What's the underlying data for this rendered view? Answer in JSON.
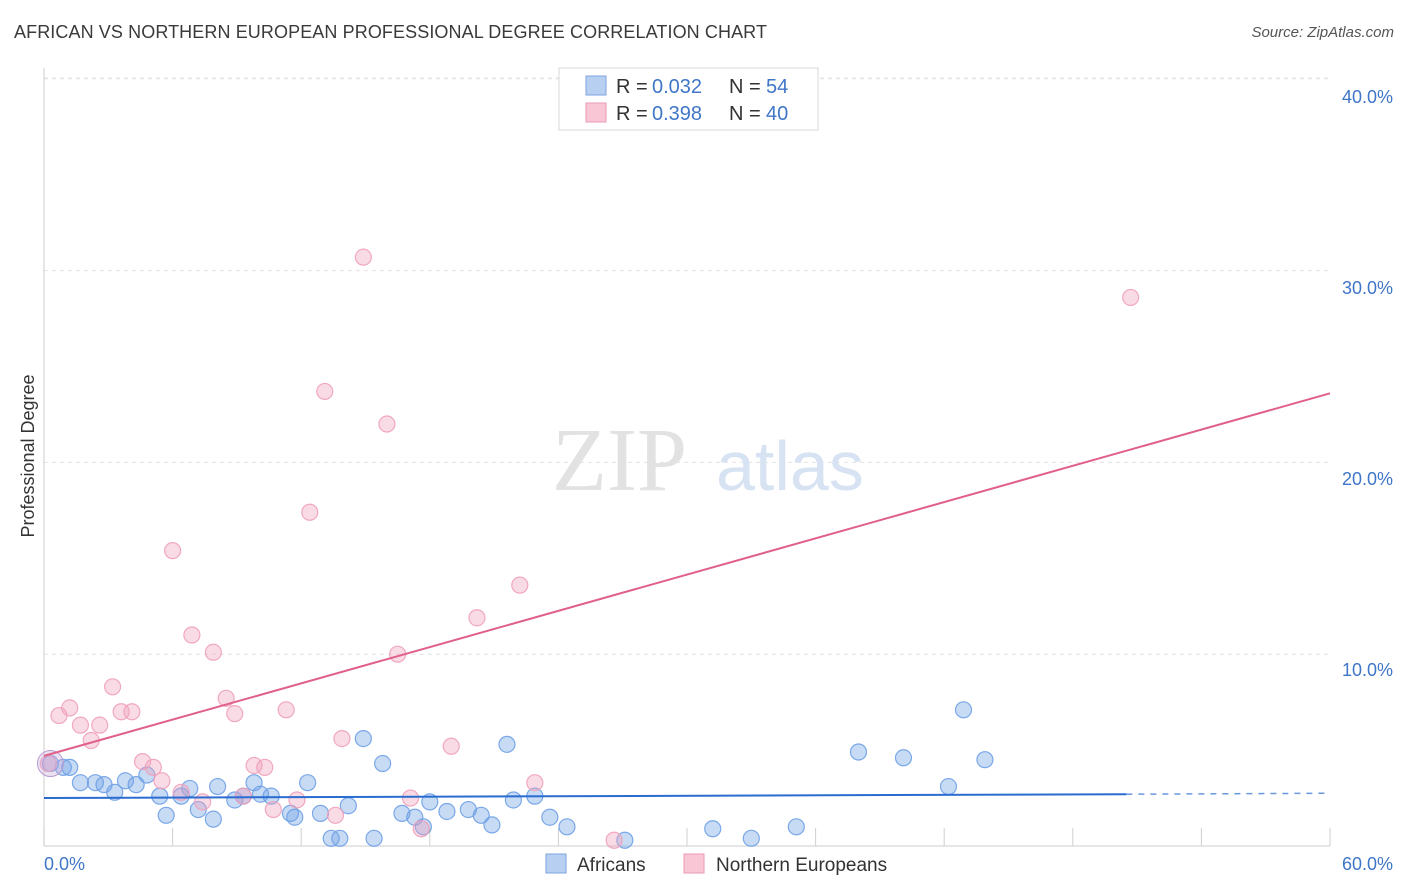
{
  "header": {
    "title": "AFRICAN VS NORTHERN EUROPEAN PROFESSIONAL DEGREE CORRELATION CHART",
    "source": "Source: ZipAtlas.com"
  },
  "watermark": {
    "zip": "ZIP",
    "atlas": "atlas"
  },
  "legend": {
    "r_label": "R =",
    "n_label": "N =",
    "entries": [
      {
        "r": "0.032",
        "n": "54"
      },
      {
        "r": "0.398",
        "n": "40"
      }
    ]
  },
  "chart_data": {
    "type": "scatter",
    "title": "AFRICAN VS NORTHERN EUROPEAN PROFESSIONAL DEGREE CORRELATION CHART",
    "xlabel": "",
    "ylabel": "Professional Degree",
    "xlim": [
      0,
      60
    ],
    "ylim": [
      0,
      41.5
    ],
    "x_tick_labels": [
      "0.0%",
      "60.0%"
    ],
    "y_ticks": [
      10,
      20,
      30,
      40
    ],
    "y_tick_labels": [
      "10.0%",
      "20.0%",
      "30.0%",
      "40.0%"
    ],
    "grid": true,
    "series": [
      {
        "name": "Africans",
        "color": "#6ea0e6",
        "line_color": "#2a6ccf",
        "r": 0.032,
        "n": 54,
        "trend": {
          "x0": 0,
          "y0": 2.5,
          "x1": 50.5,
          "y1": 2.7,
          "dash_to": 60,
          "dash_y": 2.75
        },
        "points": [
          {
            "x": 0.3,
            "y": 4.3
          },
          {
            "x": 1.2,
            "y": 4.1
          },
          {
            "x": 1.7,
            "y": 3.3
          },
          {
            "x": 2.4,
            "y": 3.3
          },
          {
            "x": 2.8,
            "y": 3.2
          },
          {
            "x": 3.3,
            "y": 2.8
          },
          {
            "x": 3.8,
            "y": 3.4
          },
          {
            "x": 4.3,
            "y": 3.2
          },
          {
            "x": 4.8,
            "y": 3.7
          },
          {
            "x": 5.4,
            "y": 2.6
          },
          {
            "x": 5.7,
            "y": 1.6
          },
          {
            "x": 6.4,
            "y": 2.6
          },
          {
            "x": 6.8,
            "y": 3.0
          },
          {
            "x": 7.2,
            "y": 1.9
          },
          {
            "x": 7.9,
            "y": 1.4
          },
          {
            "x": 8.1,
            "y": 3.1
          },
          {
            "x": 8.9,
            "y": 2.4
          },
          {
            "x": 9.3,
            "y": 2.6
          },
          {
            "x": 9.8,
            "y": 3.3
          },
          {
            "x": 10.1,
            "y": 2.7
          },
          {
            "x": 10.6,
            "y": 2.6
          },
          {
            "x": 11.5,
            "y": 1.7
          },
          {
            "x": 11.7,
            "y": 1.5
          },
          {
            "x": 12.3,
            "y": 3.3
          },
          {
            "x": 12.9,
            "y": 1.7
          },
          {
            "x": 13.4,
            "y": 0.4
          },
          {
            "x": 13.8,
            "y": 0.4
          },
          {
            "x": 14.2,
            "y": 2.1
          },
          {
            "x": 14.9,
            "y": 5.6
          },
          {
            "x": 15.4,
            "y": 0.4
          },
          {
            "x": 15.8,
            "y": 4.3
          },
          {
            "x": 16.7,
            "y": 1.7
          },
          {
            "x": 17.3,
            "y": 1.5
          },
          {
            "x": 17.7,
            "y": 1.0
          },
          {
            "x": 18.0,
            "y": 2.3
          },
          {
            "x": 18.8,
            "y": 1.8
          },
          {
            "x": 19.8,
            "y": 1.9
          },
          {
            "x": 20.4,
            "y": 1.6
          },
          {
            "x": 20.9,
            "y": 1.1
          },
          {
            "x": 21.6,
            "y": 5.3
          },
          {
            "x": 21.9,
            "y": 2.4
          },
          {
            "x": 22.9,
            "y": 2.6
          },
          {
            "x": 23.6,
            "y": 1.5
          },
          {
            "x": 24.4,
            "y": 1.0
          },
          {
            "x": 27.1,
            "y": 0.3
          },
          {
            "x": 31.2,
            "y": 0.9
          },
          {
            "x": 33.0,
            "y": 0.4
          },
          {
            "x": 35.1,
            "y": 1.0
          },
          {
            "x": 38.0,
            "y": 4.9
          },
          {
            "x": 40.1,
            "y": 4.6
          },
          {
            "x": 42.2,
            "y": 3.1
          },
          {
            "x": 42.9,
            "y": 7.1
          },
          {
            "x": 43.9,
            "y": 4.5
          },
          {
            "x": 0.9,
            "y": 4.1
          }
        ]
      },
      {
        "name": "Northern Europeans",
        "color": "#f0a0ba",
        "line_color": "#e0608a",
        "r": 0.398,
        "n": 40,
        "trend": {
          "x0": 0,
          "y0": 4.7,
          "x1": 60,
          "y1": 23.6
        },
        "points": [
          {
            "x": 0.2,
            "y": 4.3
          },
          {
            "x": 0.7,
            "y": 6.8
          },
          {
            "x": 1.2,
            "y": 7.2
          },
          {
            "x": 1.7,
            "y": 6.3
          },
          {
            "x": 2.2,
            "y": 5.5
          },
          {
            "x": 2.6,
            "y": 6.3
          },
          {
            "x": 3.2,
            "y": 8.3
          },
          {
            "x": 3.6,
            "y": 7.0
          },
          {
            "x": 4.1,
            "y": 7.0
          },
          {
            "x": 4.6,
            "y": 4.4
          },
          {
            "x": 5.1,
            "y": 4.1
          },
          {
            "x": 5.5,
            "y": 3.4
          },
          {
            "x": 6.0,
            "y": 15.4
          },
          {
            "x": 6.4,
            "y": 2.8
          },
          {
            "x": 6.9,
            "y": 11.0
          },
          {
            "x": 7.4,
            "y": 2.3
          },
          {
            "x": 7.9,
            "y": 10.1
          },
          {
            "x": 8.5,
            "y": 7.7
          },
          {
            "x": 8.9,
            "y": 6.9
          },
          {
            "x": 9.3,
            "y": 2.6
          },
          {
            "x": 9.8,
            "y": 4.2
          },
          {
            "x": 10.3,
            "y": 4.1
          },
          {
            "x": 10.7,
            "y": 1.9
          },
          {
            "x": 11.3,
            "y": 7.1
          },
          {
            "x": 11.8,
            "y": 2.4
          },
          {
            "x": 12.4,
            "y": 17.4
          },
          {
            "x": 13.1,
            "y": 23.7
          },
          {
            "x": 13.6,
            "y": 1.6
          },
          {
            "x": 13.9,
            "y": 5.6
          },
          {
            "x": 14.9,
            "y": 30.7
          },
          {
            "x": 16.0,
            "y": 22.0
          },
          {
            "x": 16.5,
            "y": 10.0
          },
          {
            "x": 17.1,
            "y": 2.5
          },
          {
            "x": 17.6,
            "y": 0.9
          },
          {
            "x": 19.0,
            "y": 5.2
          },
          {
            "x": 20.2,
            "y": 11.9
          },
          {
            "x": 22.2,
            "y": 13.6
          },
          {
            "x": 22.9,
            "y": 3.3
          },
          {
            "x": 26.6,
            "y": 0.3
          },
          {
            "x": 50.7,
            "y": 28.6
          }
        ]
      }
    ]
  }
}
